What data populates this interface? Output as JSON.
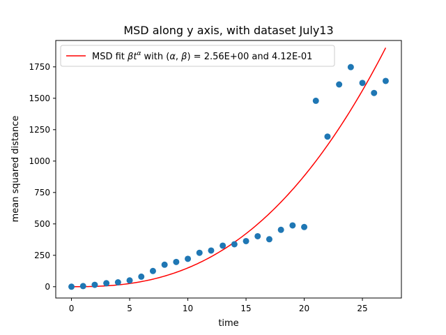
{
  "chart_data": {
    "type": "scatter",
    "title": "MSD along y axis, with dataset July13",
    "xlabel": "time",
    "ylabel": "mean squared distance",
    "xlim": [
      -1.35,
      28.35
    ],
    "ylim": [
      -90,
      1960
    ],
    "xticks": [
      0,
      5,
      10,
      15,
      20,
      25
    ],
    "yticks": [
      0,
      250,
      500,
      750,
      1000,
      1250,
      1500,
      1750
    ],
    "grid": false,
    "legend_position": "top-left",
    "legend": {
      "label_prefix": "MSD fit ",
      "label_suffix": " with ",
      "label_params": " =  2.56E+00 and 4.12E-01"
    },
    "scatter_color": "#1f77b4",
    "fit_color": "#ff0000",
    "points": {
      "x": [
        0,
        1,
        2,
        3,
        4,
        5,
        6,
        7,
        8,
        9,
        10,
        11,
        12,
        13,
        14,
        15,
        16,
        17,
        18,
        19,
        20,
        21,
        22,
        23,
        24,
        25,
        26,
        27
      ],
      "y": [
        0,
        5,
        15,
        28,
        35,
        50,
        80,
        125,
        175,
        197,
        222,
        270,
        288,
        327,
        338,
        363,
        402,
        378,
        453,
        488,
        475,
        1480,
        1195,
        1610,
        1748,
        1622,
        1542,
        1638
      ]
    },
    "fit": {
      "alpha": 2.56,
      "beta": 0.412,
      "x_start": 0,
      "x_end": 27
    }
  }
}
